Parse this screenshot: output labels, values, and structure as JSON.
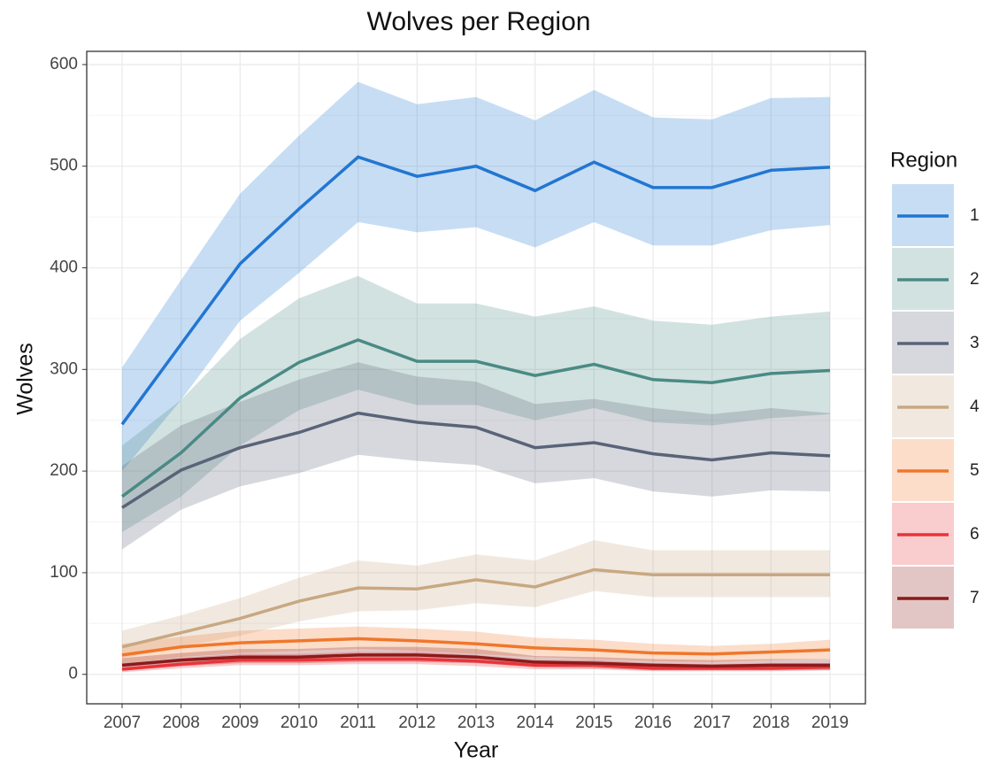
{
  "chart_data": {
    "type": "line",
    "title": "Wolves per Region",
    "x_label": "Year",
    "y_label": "Wolves",
    "legend_title": "Region",
    "legend_position": "right",
    "grid": true,
    "band_opacity": 0.25,
    "x": [
      2007,
      2008,
      2009,
      2010,
      2011,
      2012,
      2013,
      2014,
      2015,
      2016,
      2017,
      2018,
      2019
    ],
    "xlim": [
      2006.4,
      2019.6
    ],
    "xticks": [
      2007,
      2008,
      2009,
      2010,
      2011,
      2012,
      2013,
      2014,
      2015,
      2016,
      2017,
      2018,
      2019
    ],
    "ylim": [
      -29,
      613
    ],
    "yticks": [
      0,
      100,
      200,
      300,
      400,
      500,
      600
    ],
    "y_minor_ticks": [
      50,
      150,
      250,
      350,
      450,
      550
    ],
    "series": [
      {
        "name": "1",
        "color": "#2176d2",
        "values": [
          246,
          325,
          404,
          458,
          509,
          490,
          500,
          476,
          504,
          479,
          479,
          496,
          499
        ],
        "upper": [
          302,
          388,
          473,
          530,
          583,
          561,
          568,
          545,
          575,
          548,
          546,
          567,
          568
        ],
        "lower": [
          200,
          270,
          348,
          395,
          445,
          435,
          440,
          420,
          445,
          422,
          422,
          437,
          442
        ]
      },
      {
        "name": "2",
        "color": "#4a8a85",
        "values": [
          175,
          218,
          272,
          307,
          329,
          308,
          308,
          294,
          305,
          290,
          287,
          296,
          299
        ],
        "upper": [
          225,
          270,
          330,
          370,
          392,
          365,
          365,
          352,
          362,
          348,
          344,
          352,
          357
        ],
        "lower": [
          140,
          175,
          225,
          260,
          280,
          265,
          265,
          250,
          262,
          248,
          245,
          252,
          256
        ]
      },
      {
        "name": "3",
        "color": "#5a6378",
        "values": [
          164,
          201,
          223,
          238,
          257,
          248,
          243,
          223,
          228,
          217,
          211,
          218,
          215
        ],
        "upper": [
          205,
          245,
          268,
          290,
          307,
          293,
          288,
          266,
          271,
          262,
          256,
          262,
          257
        ],
        "lower": [
          123,
          162,
          185,
          198,
          216,
          210,
          206,
          188,
          193,
          180,
          175,
          181,
          180
        ]
      },
      {
        "name": "4",
        "color": "#c8a882",
        "values": [
          27,
          41,
          55,
          72,
          85,
          84,
          93,
          86,
          103,
          98,
          98,
          98,
          98
        ],
        "upper": [
          43,
          58,
          75,
          95,
          112,
          107,
          118,
          112,
          132,
          122,
          122,
          122,
          122
        ],
        "lower": [
          16,
          27,
          38,
          52,
          62,
          63,
          70,
          66,
          82,
          76,
          76,
          76,
          76
        ]
      },
      {
        "name": "5",
        "color": "#f0772b",
        "values": [
          19,
          27,
          31,
          33,
          35,
          33,
          30,
          26,
          24,
          21,
          20,
          22,
          24
        ],
        "upper": [
          30,
          37,
          43,
          45,
          47,
          45,
          42,
          36,
          34,
          30,
          28,
          30,
          34
        ],
        "lower": [
          10,
          17,
          21,
          23,
          25,
          23,
          20,
          17,
          15,
          13,
          12,
          14,
          15
        ]
      },
      {
        "name": "6",
        "color": "#e8343a",
        "values": [
          5,
          10,
          14,
          14,
          15,
          15,
          13,
          9,
          9,
          6,
          6,
          6,
          7
        ],
        "upper": [
          10,
          16,
          20,
          20,
          22,
          22,
          19,
          14,
          14,
          11,
          10,
          11,
          11
        ],
        "lower": [
          2,
          6,
          9,
          9,
          10,
          10,
          8,
          5,
          5,
          3,
          3,
          3,
          4
        ]
      },
      {
        "name": "7",
        "color": "#8b1a1a",
        "values": [
          9,
          14,
          17,
          17,
          19,
          19,
          17,
          12,
          11,
          9,
          8,
          9,
          9
        ],
        "upper": [
          16,
          21,
          25,
          25,
          27,
          27,
          25,
          18,
          17,
          15,
          14,
          15,
          15
        ],
        "lower": [
          4,
          8,
          11,
          11,
          12,
          12,
          11,
          7,
          6,
          4,
          4,
          4,
          4
        ]
      }
    ]
  }
}
